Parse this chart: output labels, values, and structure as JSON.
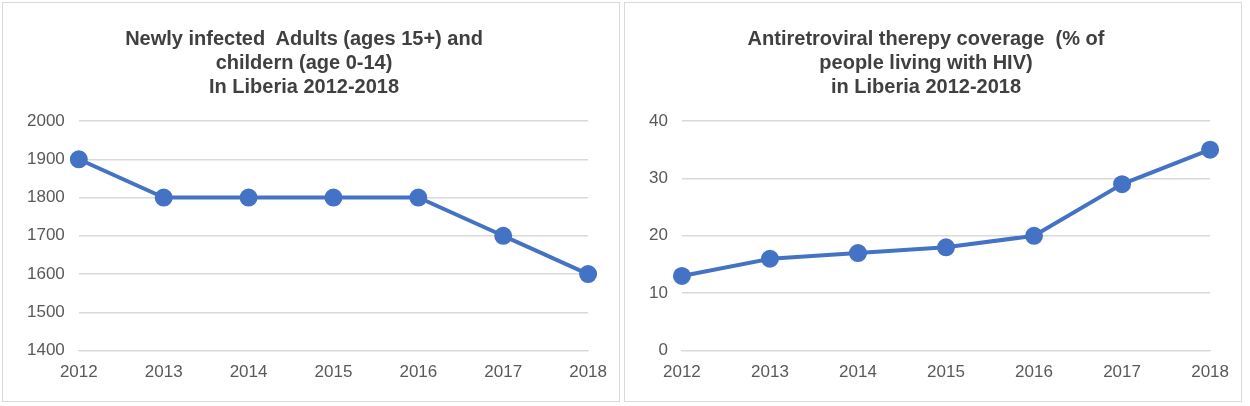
{
  "chart_data": [
    {
      "type": "line",
      "title": "Newly infected  Adults (ages 15+) and\nchildern (age 0-14)\nIn Liberia 2012-2018",
      "categories": [
        "2012",
        "2013",
        "2014",
        "2015",
        "2016",
        "2017",
        "2018"
      ],
      "series": [
        {
          "color": "#4472c4",
          "values": [
            1900,
            1800,
            1800,
            1800,
            1800,
            1700,
            1600
          ]
        }
      ],
      "ylim": [
        1400,
        2000
      ],
      "yticks": [
        1400,
        1500,
        1600,
        1700,
        1800,
        1900,
        2000
      ],
      "grid": "y",
      "marker": "circle",
      "line_style": "solid"
    },
    {
      "type": "line",
      "title": "Antiretroviral therepy coverage  (% of\npeople living with HIV)\nin Liberia 2012-2018",
      "categories": [
        "2012",
        "2013",
        "2014",
        "2015",
        "2016",
        "2017",
        "2018"
      ],
      "series": [
        {
          "color": "#4472c4",
          "values": [
            13,
            16,
            17,
            18,
            20,
            29,
            35
          ]
        }
      ],
      "ylim": [
        0,
        40
      ],
      "yticks": [
        0,
        10,
        20,
        30,
        40
      ],
      "grid": "y",
      "marker": "circle",
      "line_style": "solid"
    }
  ]
}
